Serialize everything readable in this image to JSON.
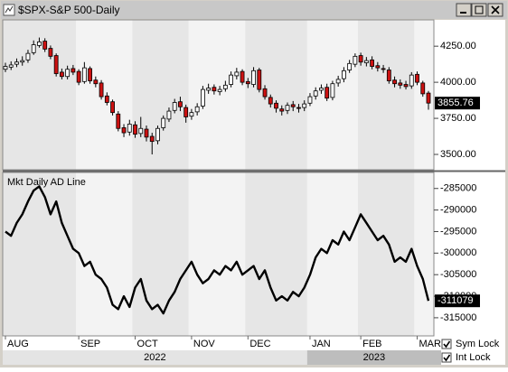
{
  "window": {
    "title": "$SPX-S&P 500-Daily"
  },
  "chart_data": [
    {
      "type": "candlestick",
      "categories": [
        "AUG",
        null,
        null,
        null,
        null,
        null,
        null,
        null,
        null,
        null,
        null,
        null,
        null,
        "SEP",
        null,
        null,
        null,
        null,
        null,
        null,
        null,
        null,
        null,
        "OCT",
        null,
        null,
        null,
        null,
        null,
        null,
        null,
        null,
        null,
        "NOV",
        null,
        null,
        null,
        null,
        null,
        null,
        null,
        null,
        null,
        "DEC",
        null,
        null,
        null,
        null,
        null,
        null,
        null,
        null,
        null,
        null,
        "JAN",
        null,
        null,
        null,
        null,
        null,
        null,
        null,
        null,
        "FEB",
        null,
        null,
        null,
        null,
        null,
        null,
        null,
        null,
        null,
        "MAR",
        null,
        null
      ],
      "years": [
        "2022",
        "2023"
      ],
      "open": [
        4090,
        4105,
        4125,
        4140,
        4155,
        4205,
        4255,
        4285,
        4235,
        4185,
        4070,
        4040,
        4095,
        4075,
        4005,
        4095,
        4015,
        3995,
        3905,
        3865,
        3780,
        3685,
        3655,
        3705,
        3645,
        3675,
        3625,
        3595,
        3685,
        3745,
        3805,
        3865,
        3825,
        3765,
        3795,
        3835,
        3945,
        3965,
        3935,
        3955,
        3985,
        4045,
        4075,
        4005,
        3985,
        4085,
        3955,
        3895,
        3855,
        3815,
        3805,
        3845,
        3825,
        3825,
        3855,
        3905,
        3945,
        3965,
        3895,
        3995,
        4025,
        4085,
        4125,
        4185,
        4135,
        4155,
        4115,
        4095,
        4085,
        4015,
        3995,
        3985,
        3975,
        4055,
        3995,
        3925
      ],
      "high": [
        4135,
        4145,
        4165,
        4180,
        4225,
        4290,
        4310,
        4305,
        4255,
        4200,
        4095,
        4115,
        4120,
        4090,
        4140,
        4110,
        4040,
        4015,
        3930,
        3880,
        3800,
        3710,
        3740,
        3730,
        3760,
        3700,
        3650,
        3700,
        3770,
        3825,
        3885,
        3900,
        3845,
        3815,
        3855,
        3975,
        3990,
        3985,
        3975,
        4010,
        4075,
        4100,
        4090,
        4030,
        4105,
        4100,
        3980,
        3915,
        3875,
        3840,
        3860,
        3870,
        3850,
        3875,
        3925,
        3965,
        3985,
        3990,
        4010,
        4045,
        4105,
        4155,
        4200,
        4205,
        4175,
        4180,
        4140,
        4120,
        4105,
        4040,
        4020,
        4010,
        4070,
        4075,
        4010,
        3940
      ],
      "low": [
        4070,
        4085,
        4105,
        4115,
        4135,
        4190,
        4240,
        4210,
        4160,
        4040,
        4020,
        4020,
        4050,
        3980,
        3990,
        3990,
        3965,
        3880,
        3840,
        3770,
        3660,
        3620,
        3630,
        3615,
        3620,
        3590,
        3500,
        3570,
        3665,
        3725,
        3785,
        3800,
        3720,
        3740,
        3770,
        3815,
        3920,
        3915,
        3910,
        3935,
        3965,
        4020,
        3980,
        3960,
        3965,
        3930,
        3880,
        3825,
        3790,
        3770,
        3780,
        3800,
        3790,
        3800,
        3835,
        3880,
        3920,
        3870,
        3875,
        3970,
        4000,
        4065,
        4105,
        4115,
        4110,
        4090,
        4075,
        4065,
        3990,
        3965,
        3955,
        3950,
        3955,
        3980,
        3900,
        3810
      ],
      "close": [
        4110,
        4120,
        4140,
        4150,
        4200,
        4260,
        4280,
        4230,
        4180,
        4060,
        4040,
        4090,
        4070,
        4000,
        4100,
        4010,
        3990,
        3900,
        3860,
        3790,
        3680,
        3650,
        3710,
        3640,
        3680,
        3620,
        3590,
        3680,
        3750,
        3800,
        3860,
        3830,
        3760,
        3790,
        3830,
        3950,
        3960,
        3940,
        3950,
        3980,
        4050,
        4070,
        4000,
        3990,
        4080,
        3950,
        3900,
        3850,
        3820,
        3800,
        3840,
        3830,
        3820,
        3850,
        3900,
        3940,
        3960,
        3890,
        3990,
        4020,
        4080,
        4130,
        4180,
        4140,
        4150,
        4110,
        4100,
        4090,
        4010,
        3990,
        3980,
        3970,
        4050,
        4000,
        3920,
        3855.76
      ],
      "up_color": "#ffffff",
      "down_color": "#cc1111",
      "ylim": [
        3400,
        4420
      ],
      "yticks": [
        {
          "value": 3500,
          "label": "3500.00"
        },
        {
          "value": 3750,
          "label": "3750.00"
        },
        {
          "value": 4000,
          "label": "4000.00"
        },
        {
          "value": 4250,
          "label": "4250.00"
        }
      ]
    },
    {
      "type": "line",
      "title": "Mkt Daily AD Line",
      "color": "#000000",
      "values": [
        -295000,
        -296000,
        -293000,
        -291000,
        -288000,
        -285500,
        -284500,
        -287000,
        -291000,
        -288000,
        -293000,
        -296000,
        -299000,
        -300000,
        -303000,
        -302000,
        -305000,
        -306000,
        -308000,
        -312000,
        -313000,
        -310000,
        -312500,
        -308000,
        -306000,
        -311000,
        -313000,
        -312000,
        -314000,
        -311000,
        -309000,
        -306000,
        -304000,
        -302000,
        -305000,
        -307000,
        -306000,
        -304000,
        -305000,
        -303000,
        -304000,
        -302000,
        -305000,
        -304000,
        -303000,
        -306000,
        -304000,
        -308000,
        -311000,
        -310000,
        -311000,
        -309000,
        -310000,
        -308000,
        -305000,
        -301000,
        -299000,
        -300000,
        -297000,
        -298000,
        -295000,
        -297000,
        -294000,
        -291000,
        -293000,
        -295000,
        -297000,
        -296000,
        -298000,
        -302000,
        -301000,
        -302000,
        -299000,
        -303000,
        -306000,
        -311079
      ],
      "ylim": [
        -319000,
        -281700
      ],
      "yticks": [
        -315000,
        -310000,
        -305000,
        -300000,
        -295000,
        -290000,
        -285000
      ]
    }
  ],
  "controls": [
    "Sym Lock",
    "Int Lock"
  ]
}
